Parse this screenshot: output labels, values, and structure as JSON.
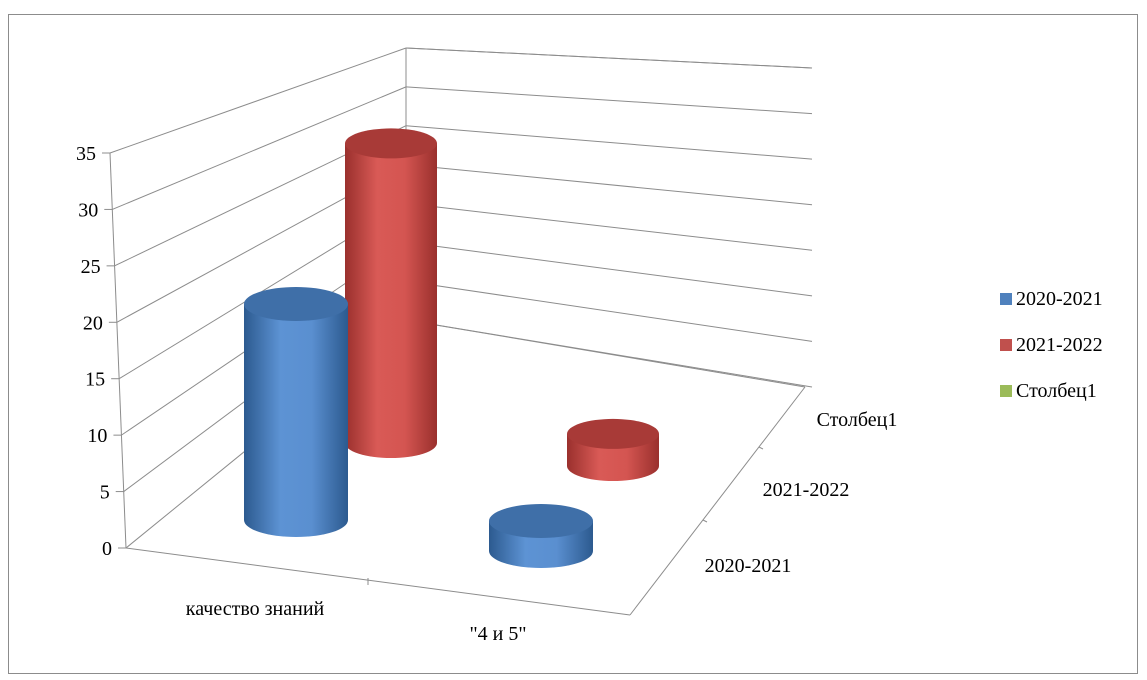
{
  "chart_data": {
    "type": "bar",
    "style": "3d-cylinder",
    "categories": [
      "качество знаний",
      "\"4 и 5\""
    ],
    "series": [
      {
        "name": "2020-2021",
        "color": "#4f81bd",
        "values": [
          20,
          0
        ]
      },
      {
        "name": "2021-2022",
        "color": "#c0504d",
        "values": [
          28,
          3
        ]
      },
      {
        "name": "Столбец1",
        "color": "#9bbb59",
        "values": [
          null,
          null
        ]
      }
    ],
    "depth_labels": [
      "2020-2021",
      "2021-2022",
      "Столбец1"
    ],
    "y_ticks": [
      "0",
      "5",
      "10",
      "15",
      "20",
      "25",
      "30",
      "35"
    ],
    "ylim": [
      0,
      35
    ],
    "grid": true,
    "legend_position": "right"
  }
}
